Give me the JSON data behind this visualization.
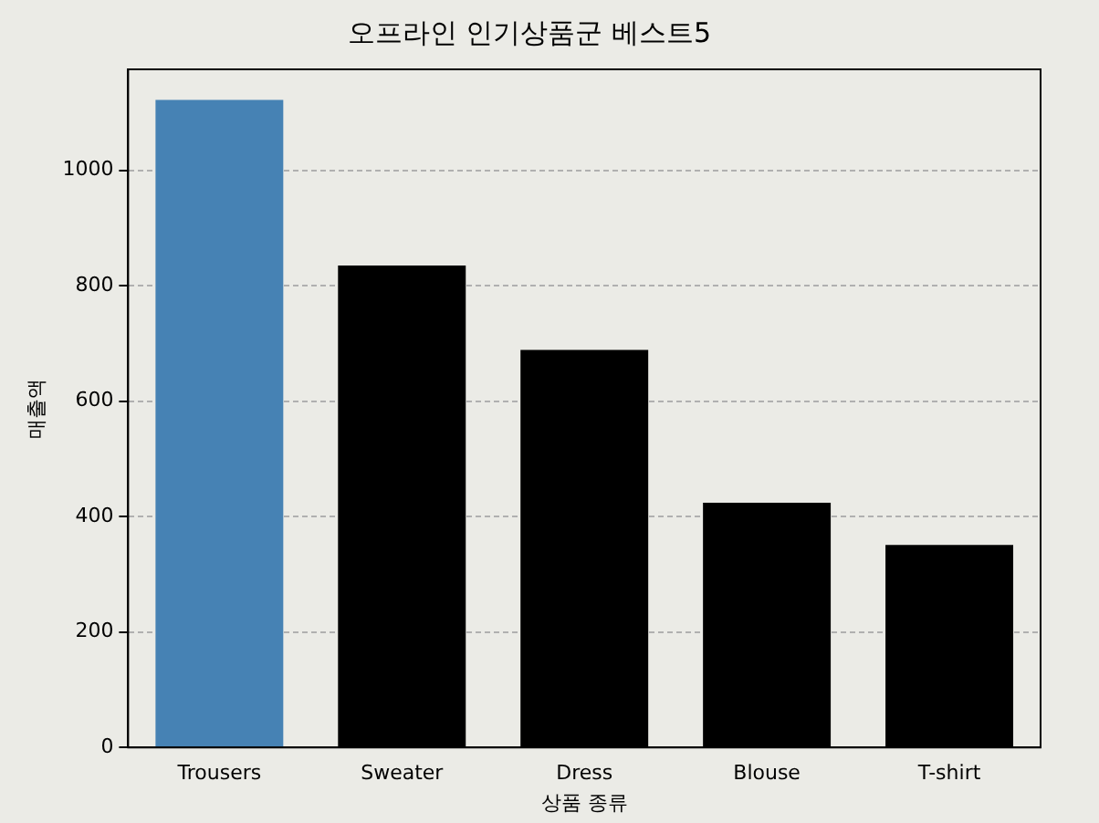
{
  "chart_data": {
    "type": "bar",
    "title": "오프라인 인기상품군 베스트5",
    "xlabel": "상품 종류",
    "ylabel": "매출액",
    "categories": [
      "Trousers",
      "Sweater",
      "Dress",
      "Blouse",
      "T-shirt"
    ],
    "values": [
      1122,
      835,
      689,
      424,
      351
    ],
    "colors": [
      "#4682b4",
      "#000000",
      "#000000",
      "#000000",
      "#000000"
    ],
    "ylim": [
      0,
      1175
    ],
    "yticks": [
      0,
      200,
      400,
      600,
      800,
      1000
    ],
    "grid": "y",
    "line_style": "dashed"
  }
}
